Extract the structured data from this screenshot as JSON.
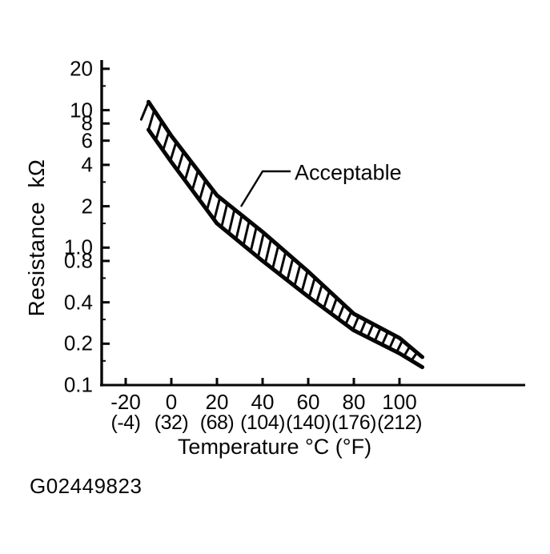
{
  "figure_code": "G02449823",
  "colors": {
    "ink": "#060606",
    "paper": "#ffffff"
  },
  "chart_data": {
    "type": "area",
    "title": "",
    "ylabel": "Resistance kΩ",
    "xlabel": "Temperature °C (°F)",
    "annotation": "Acceptable",
    "y_scale": "log",
    "ylim": [
      0.1,
      20
    ],
    "xlim_c": [
      -30,
      125
    ],
    "grid": false,
    "legend_position": "none",
    "y_ticks": [
      {
        "value": 20,
        "label": "20"
      },
      {
        "value": 10,
        "label": "10"
      },
      {
        "value": 8,
        "label": "8"
      },
      {
        "value": 6,
        "label": "6"
      },
      {
        "value": 4,
        "label": "4"
      },
      {
        "value": 2,
        "label": "2"
      },
      {
        "value": 1,
        "label": "1.0"
      },
      {
        "value": 0.8,
        "label": "0.8"
      },
      {
        "value": 0.4,
        "label": "0.4"
      },
      {
        "value": 0.2,
        "label": "0.2"
      },
      {
        "value": 0.1,
        "label": "0.1"
      }
    ],
    "y_minor_ticks": [
      15,
      3,
      1.5,
      0.6,
      0.3,
      0.15
    ],
    "x_ticks": [
      {
        "c": -20,
        "label_c": "-20",
        "label_f": "(-4)"
      },
      {
        "c": 0,
        "label_c": "0",
        "label_f": "(32)"
      },
      {
        "c": 20,
        "label_c": "20",
        "label_f": "(68)"
      },
      {
        "c": 40,
        "label_c": "40",
        "label_f": "(104)"
      },
      {
        "c": 60,
        "label_c": "60",
        "label_f": "(140)"
      },
      {
        "c": 80,
        "label_c": "80",
        "label_f": "(176)"
      },
      {
        "c": 100,
        "label_c": "100",
        "label_f": "(212)"
      }
    ],
    "band": {
      "label": "Acceptable",
      "x_c": [
        -10,
        0,
        20,
        40,
        60,
        80,
        100,
        110
      ],
      "upper_kohm": [
        11.5,
        6.5,
        2.4,
        1.3,
        0.67,
        0.33,
        0.22,
        0.16
      ],
      "lower_kohm": [
        7.2,
        4.2,
        1.5,
        0.8,
        0.44,
        0.25,
        0.17,
        0.135
      ]
    }
  }
}
